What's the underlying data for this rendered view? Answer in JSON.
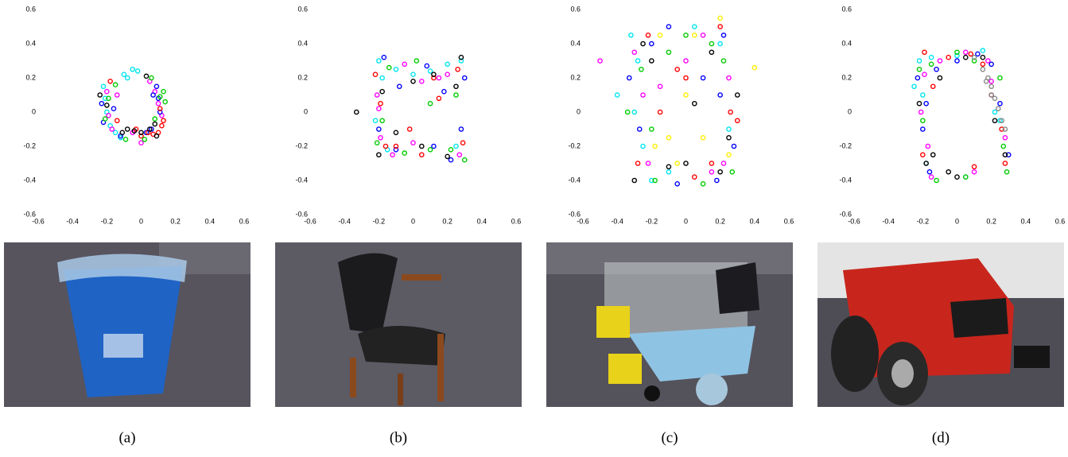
{
  "chart_data": [
    {
      "type": "scatter",
      "caption": "(a)",
      "xlim": [
        -0.6,
        0.6
      ],
      "ylim": [
        -0.6,
        0.6
      ],
      "xticks": [
        -0.6,
        -0.4,
        -0.2,
        0,
        0.2,
        0.4,
        0.6
      ],
      "yticks": [
        -0.6,
        -0.4,
        -0.2,
        0,
        0.2,
        0.4,
        0.6
      ],
      "series": [
        {
          "color": "#00e5ee",
          "x": [
            -0.22,
            -0.21,
            -0.2,
            -0.18,
            -0.15,
            -0.1,
            -0.05,
            -0.02,
            -0.08,
            -0.12
          ],
          "values": [
            0.15,
            0.08,
            0.0,
            -0.08,
            -0.12,
            0.22,
            0.25,
            0.24,
            0.2,
            -0.15
          ]
        },
        {
          "color": "#ff00ff",
          "x": [
            -0.2,
            -0.19,
            -0.17,
            -0.14,
            0.05,
            0.08,
            0.1,
            0.12,
            -0.05,
            0.0
          ],
          "values": [
            0.12,
            -0.02,
            -0.1,
            0.1,
            0.18,
            0.12,
            0.05,
            -0.02,
            -0.12,
            -0.18
          ]
        },
        {
          "color": "#0000ff",
          "x": [
            -0.23,
            -0.22,
            0.09,
            0.1,
            0.11,
            0.06,
            -0.16,
            -0.12,
            0.03,
            0.07
          ],
          "values": [
            0.05,
            -0.06,
            0.15,
            0.08,
            0.0,
            -0.1,
            0.02,
            -0.14,
            -0.12,
            0.1
          ]
        },
        {
          "color": "#ff0000",
          "x": [
            0.12,
            0.1,
            0.07,
            0.04,
            0.0,
            -0.03,
            0.11,
            0.13,
            -0.18,
            -0.14
          ],
          "values": [
            -0.08,
            -0.12,
            -0.13,
            -0.12,
            -0.14,
            -0.1,
            0.02,
            -0.05,
            0.18,
            -0.05
          ]
        },
        {
          "color": "#00cc00",
          "x": [
            0.14,
            0.13,
            0.11,
            0.08,
            -0.21,
            -0.15,
            -0.09,
            0.02,
            0.06,
            -0.19
          ],
          "values": [
            0.06,
            0.12,
            0.09,
            -0.04,
            -0.04,
            0.16,
            -0.16,
            -0.16,
            0.2,
            0.08
          ]
        },
        {
          "color": "#000000",
          "x": [
            -0.08,
            -0.04,
            0.0,
            0.05,
            0.08,
            -0.11,
            0.03,
            -0.24,
            -0.2,
            0.09
          ],
          "values": [
            -0.1,
            -0.11,
            -0.12,
            -0.1,
            -0.07,
            -0.12,
            0.21,
            0.1,
            0.04,
            -0.14
          ]
        }
      ]
    },
    {
      "type": "scatter",
      "caption": "(b)",
      "xlim": [
        -0.6,
        0.6
      ],
      "ylim": [
        -0.6,
        0.6
      ],
      "xticks": [
        -0.6,
        -0.4,
        -0.2,
        0,
        0.2,
        0.4,
        0.6
      ],
      "yticks": [
        -0.6,
        -0.4,
        -0.2,
        0,
        0.2,
        0.4,
        0.6
      ],
      "series": [
        {
          "color": "#00e5ee",
          "x": [
            -0.2,
            -0.18,
            -0.1,
            0.0,
            0.1,
            0.2,
            -0.22,
            -0.15,
            0.25,
            0.28
          ],
          "values": [
            0.3,
            0.2,
            0.25,
            0.22,
            0.24,
            0.28,
            -0.05,
            -0.22,
            -0.2,
            0.3
          ]
        },
        {
          "color": "#ff00ff",
          "x": [
            -0.21,
            -0.19,
            -0.05,
            0.05,
            0.15,
            0.27,
            -0.12,
            0.0,
            0.2,
            -0.2
          ],
          "values": [
            0.1,
            -0.15,
            0.28,
            0.18,
            0.2,
            -0.25,
            -0.25,
            -0.18,
            0.22,
            0.02
          ]
        },
        {
          "color": "#0000ff",
          "x": [
            -0.2,
            -0.17,
            -0.08,
            0.08,
            0.18,
            0.28,
            0.12,
            0.22,
            -0.1,
            0.3
          ],
          "values": [
            -0.1,
            0.32,
            0.15,
            0.27,
            0.12,
            -0.1,
            -0.2,
            -0.28,
            -0.22,
            0.2
          ]
        },
        {
          "color": "#ff0000",
          "x": [
            -0.19,
            -0.16,
            -0.02,
            0.12,
            0.26,
            0.29,
            -0.1,
            0.05,
            0.15,
            -0.22
          ],
          "values": [
            0.05,
            -0.2,
            -0.1,
            0.2,
            0.25,
            -0.18,
            -0.2,
            -0.25,
            0.08,
            0.22
          ]
        },
        {
          "color": "#00cc00",
          "x": [
            -0.18,
            -0.14,
            0.02,
            0.1,
            0.22,
            0.3,
            -0.05,
            0.1,
            0.25,
            -0.21
          ],
          "values": [
            -0.05,
            0.26,
            0.3,
            0.05,
            -0.22,
            -0.28,
            -0.24,
            -0.22,
            0.1,
            -0.18
          ]
        },
        {
          "color": "#000000",
          "x": [
            -0.33,
            -0.18,
            -0.1,
            0.0,
            0.12,
            0.2,
            0.28,
            0.05,
            0.25,
            -0.2
          ],
          "values": [
            0.0,
            0.12,
            -0.12,
            0.18,
            0.22,
            -0.26,
            0.32,
            -0.2,
            0.15,
            -0.25
          ]
        }
      ]
    },
    {
      "type": "scatter",
      "caption": "(c)",
      "xlim": [
        -0.6,
        0.6
      ],
      "ylim": [
        -0.6,
        0.6
      ],
      "xticks": [
        -0.6,
        -0.4,
        -0.2,
        0,
        0.2,
        0.4,
        0.6
      ],
      "yticks": [
        -0.6,
        -0.4,
        -0.2,
        0,
        0.2,
        0.4,
        0.6
      ],
      "series": [
        {
          "color": "#00e5ee",
          "x": [
            -0.32,
            -0.28,
            -0.3,
            -0.25,
            -0.1,
            0.05,
            0.2,
            -0.2,
            0.25,
            -0.4
          ],
          "values": [
            0.45,
            0.3,
            0.0,
            -0.2,
            -0.35,
            0.5,
            0.4,
            -0.4,
            -0.1,
            0.1
          ]
        },
        {
          "color": "#ff00ff",
          "x": [
            -0.3,
            -0.25,
            -0.22,
            0.0,
            0.15,
            0.25,
            -0.15,
            0.1,
            0.22,
            -0.5
          ],
          "values": [
            0.35,
            0.1,
            -0.3,
            0.3,
            -0.35,
            0.2,
            0.15,
            0.45,
            -0.3,
            0.3
          ]
        },
        {
          "color": "#0000ff",
          "x": [
            -0.33,
            -0.27,
            -0.2,
            -0.05,
            0.2,
            0.28,
            0.1,
            0.18,
            -0.1,
            0.22
          ],
          "values": [
            0.2,
            -0.1,
            0.4,
            -0.42,
            0.1,
            -0.2,
            0.2,
            -0.4,
            0.5,
            0.45
          ]
        },
        {
          "color": "#ff0000",
          "x": [
            -0.28,
            -0.22,
            -0.15,
            0.05,
            0.2,
            0.26,
            -0.05,
            0.15,
            0.0,
            0.3
          ],
          "values": [
            -0.3,
            0.45,
            0.0,
            -0.38,
            0.5,
            0.0,
            0.25,
            -0.3,
            0.2,
            -0.05
          ]
        },
        {
          "color": "#00cc00",
          "x": [
            -0.34,
            -0.26,
            -0.18,
            0.0,
            0.15,
            0.27,
            0.22,
            -0.1,
            0.1,
            -0.2
          ],
          "values": [
            0.0,
            0.25,
            -0.4,
            0.45,
            0.4,
            -0.35,
            0.3,
            0.35,
            -0.42,
            -0.1
          ]
        },
        {
          "color": "#000000",
          "x": [
            -0.3,
            -0.2,
            -0.1,
            0.05,
            0.2,
            0.3,
            0.25,
            0.0,
            0.15,
            -0.25
          ],
          "values": [
            -0.4,
            0.3,
            -0.32,
            0.05,
            -0.35,
            0.1,
            -0.15,
            -0.3,
            0.35,
            0.4
          ]
        },
        {
          "color": "#ffee00",
          "x": [
            -0.15,
            -0.1,
            0.05,
            0.2,
            0.4,
            -0.18,
            0.1,
            0.25,
            -0.05,
            0.0
          ],
          "values": [
            0.45,
            -0.15,
            0.45,
            0.55,
            0.26,
            -0.2,
            -0.15,
            -0.25,
            -0.3,
            0.1
          ]
        }
      ]
    },
    {
      "type": "scatter",
      "caption": "(d)",
      "xlim": [
        -0.6,
        0.6
      ],
      "ylim": [
        -0.6,
        0.6
      ],
      "xticks": [
        -0.6,
        -0.4,
        -0.2,
        0,
        0.2,
        0.4,
        0.6
      ],
      "yticks": [
        -0.6,
        -0.4,
        -0.2,
        0,
        0.2,
        0.4,
        0.6
      ],
      "series": [
        {
          "color": "#00e5ee",
          "x": [
            -0.22,
            -0.2,
            -0.15,
            0.0,
            0.15,
            0.25,
            -0.18,
            0.05,
            0.22,
            -0.25
          ],
          "values": [
            0.3,
            0.1,
            0.32,
            0.33,
            0.36,
            -0.05,
            -0.3,
            -0.38,
            0.0,
            0.15
          ]
        },
        {
          "color": "#ff00ff",
          "x": [
            -0.21,
            -0.17,
            -0.1,
            0.05,
            0.18,
            0.28,
            -0.15,
            0.1,
            0.2,
            -0.19
          ],
          "values": [
            0.0,
            -0.2,
            0.3,
            0.35,
            0.3,
            -0.15,
            -0.38,
            -0.35,
            0.18,
            0.22
          ]
        },
        {
          "color": "#0000ff",
          "x": [
            -0.23,
            -0.2,
            -0.12,
            0.0,
            0.12,
            0.2,
            -0.16,
            0.25,
            0.3,
            -0.18
          ],
          "values": [
            0.2,
            -0.1,
            0.25,
            0.3,
            0.34,
            0.28,
            -0.35,
            0.05,
            -0.25,
            0.05
          ]
        },
        {
          "color": "#ff0000",
          "x": [
            -0.19,
            -0.14,
            -0.05,
            0.08,
            0.15,
            0.26,
            0.28,
            -0.2,
            0.2,
            0.1
          ],
          "values": [
            0.35,
            0.15,
            0.32,
            0.34,
            0.28,
            -0.1,
            -0.3,
            -0.25,
            0.1,
            -0.32
          ]
        },
        {
          "color": "#00cc00",
          "x": [
            -0.2,
            -0.15,
            0.0,
            0.1,
            0.25,
            0.29,
            -0.12,
            0.05,
            0.27,
            -0.22
          ],
          "values": [
            -0.05,
            0.28,
            0.35,
            0.3,
            0.2,
            -0.35,
            -0.4,
            -0.38,
            -0.2,
            0.25
          ]
        },
        {
          "color": "#000000",
          "x": [
            -0.22,
            -0.18,
            -0.1,
            -0.05,
            0.05,
            0.15,
            0.22,
            0.28,
            -0.14,
            0.0
          ],
          "values": [
            0.05,
            -0.3,
            0.2,
            -0.35,
            0.32,
            0.32,
            -0.05,
            -0.25,
            -0.25,
            -0.38
          ]
        },
        {
          "color": "#888888",
          "x": [
            0.15,
            0.18,
            0.2,
            0.22,
            0.24,
            0.26,
            0.1,
            0.2,
            0.28,
            0.17
          ],
          "values": [
            0.25,
            0.2,
            0.15,
            0.08,
            0.02,
            -0.05,
            0.32,
            0.1,
            -0.1,
            0.18
          ]
        }
      ]
    }
  ]
}
